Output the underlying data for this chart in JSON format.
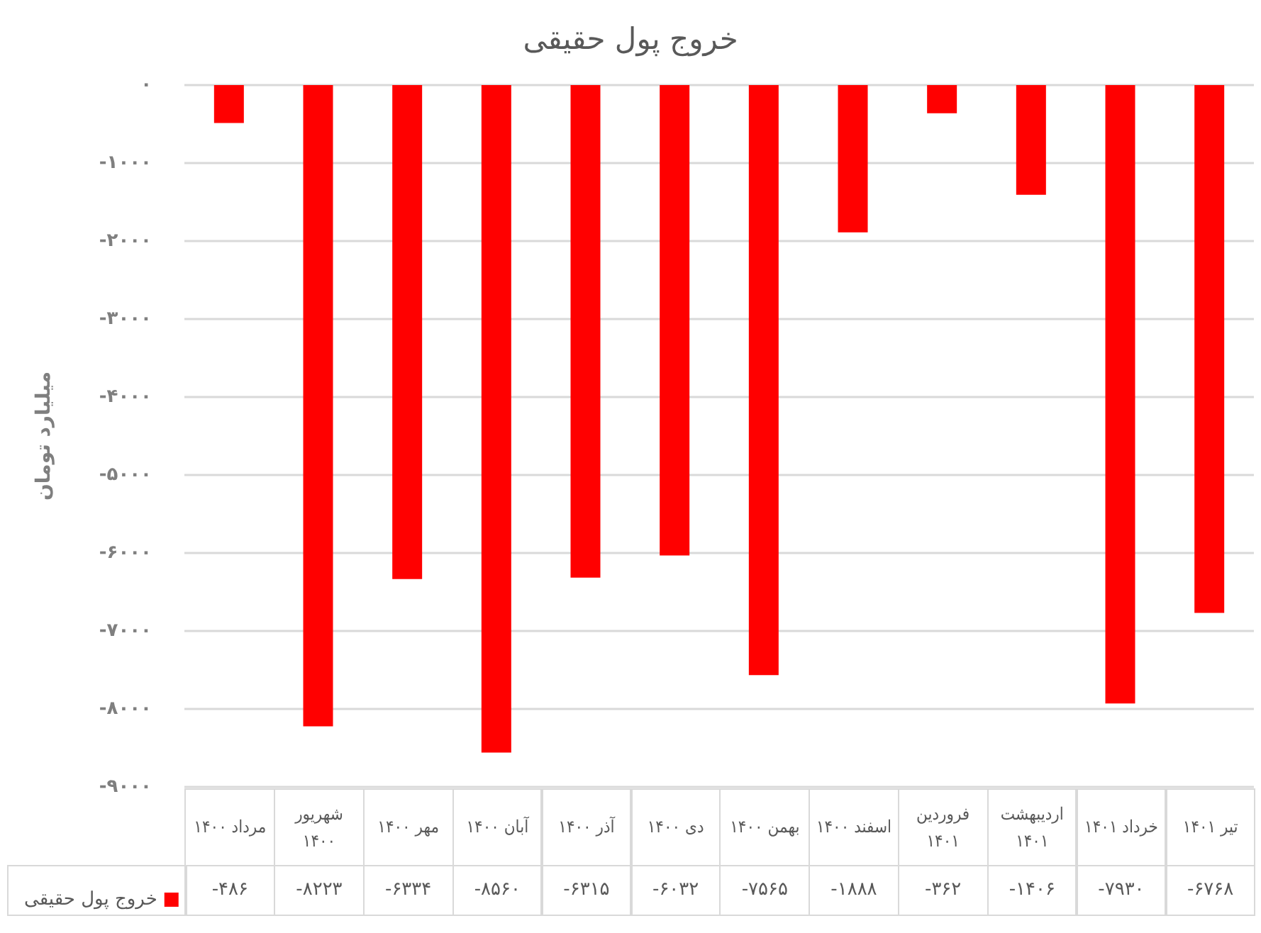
{
  "chart_data": {
    "type": "bar",
    "title": "خروج پول حقیقی",
    "ylabel": "میلیارد تومان",
    "categories": [
      "مرداد ۱۴۰۰",
      "شهریور ۱۴۰۰",
      "مهر ۱۴۰۰",
      "آبان ۱۴۰۰",
      "آذر ۱۴۰۰",
      "دی ۱۴۰۰",
      "بهمن ۱۴۰۰",
      "اسفند ۱۴۰۰",
      "فروردین ۱۴۰۱",
      "اردیبهشت ۱۴۰۱",
      "خرداد ۱۴۰۱",
      "تیر ۱۴۰۱"
    ],
    "series": [
      {
        "name": "خروج پول حقیقی",
        "color": "#ff0000",
        "values": [
          -486,
          -8223,
          -6334,
          -8560,
          -6315,
          -6032,
          -7565,
          -1888,
          -362,
          -1406,
          -7930,
          -6768
        ],
        "value_labels": [
          "-۴۸۶",
          "-۸۲۲۳",
          "-۶۳۳۴",
          "-۸۵۶۰",
          "-۶۳۱۵",
          "-۶۰۳۲",
          "-۷۵۶۵",
          "-۱۸۸۸",
          "-۳۶۲",
          "-۱۴۰۶",
          "-۷۹۳۰",
          "-۶۷۶۸"
        ]
      }
    ],
    "ylim": [
      -9000,
      0
    ],
    "yticks": [
      {
        "value": -9000,
        "label": "-۹۰۰۰"
      },
      {
        "value": -8000,
        "label": "-۸۰۰۰"
      },
      {
        "value": -7000,
        "label": "-۷۰۰۰"
      },
      {
        "value": -6000,
        "label": "-۶۰۰۰"
      },
      {
        "value": -5000,
        "label": "-۵۰۰۰"
      },
      {
        "value": -4000,
        "label": "-۴۰۰۰"
      },
      {
        "value": -3000,
        "label": "-۳۰۰۰"
      },
      {
        "value": -2000,
        "label": "-۲۰۰۰"
      },
      {
        "value": -1000,
        "label": "-۱۰۰۰"
      },
      {
        "value": 0,
        "label": "۰"
      }
    ],
    "grid": "y",
    "legend": "bottom left"
  }
}
